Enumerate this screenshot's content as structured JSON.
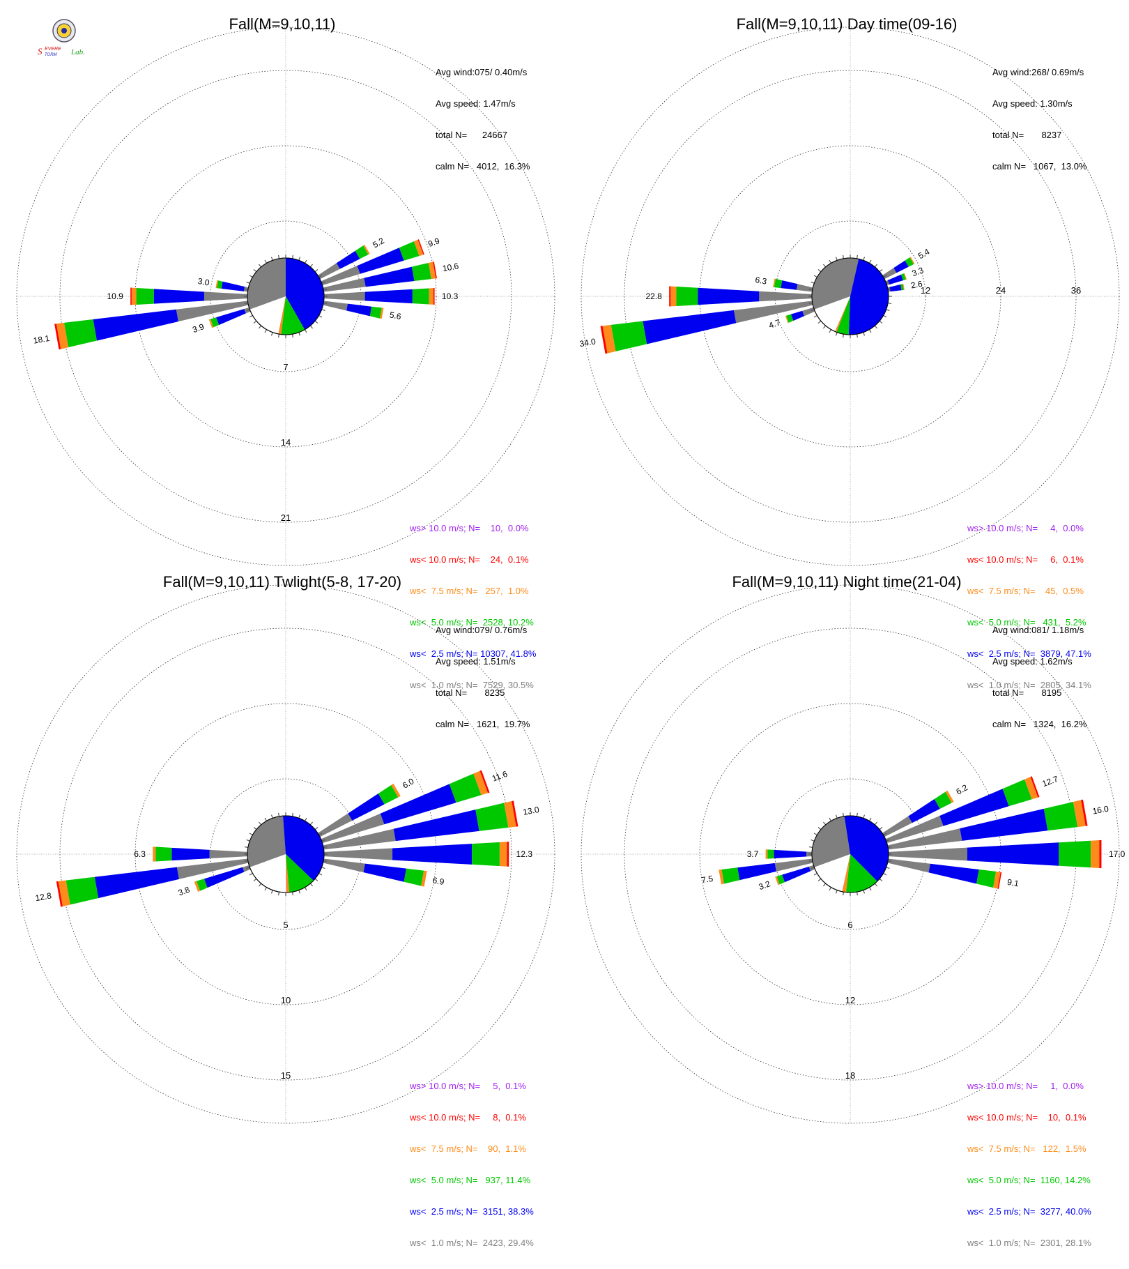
{
  "logo": {
    "text_main": "Severe",
    "text_sub": "Storm",
    "text_lab": "Lab."
  },
  "colors": {
    "calm": "#7f7f7f",
    "ws_lt_1": "#7f7f7f",
    "ws_lt_2_5": "#0000f0",
    "ws_lt_5": "#00c800",
    "ws_lt_7_5": "#ff8c1a",
    "ws_lt_10": "#ff0000",
    "ws_gt_10": "#a020f0"
  },
  "chart_data": [
    {
      "type": "windrose",
      "title": "Fall(M=9,10,11)",
      "stats": [
        "Avg wind:075/ 0.40m/s",
        "Avg speed: 1.47m/s",
        "total N=      24667",
        "calm N=   4012,  16.3%"
      ],
      "ring_labels": [
        "7",
        "14",
        "21"
      ],
      "ring_label_side": "bottom",
      "ring_step": 7,
      "legend": [
        {
          "text": "ws> 10.0 m/s; N=    10,  0.0%",
          "color": "#a020f0"
        },
        {
          "text": "ws< 10.0 m/s; N=    24,  0.1%",
          "color": "#ff0000"
        },
        {
          "text": "ws<  7.5 m/s; N=   257,  1.0%",
          "color": "#ff8c1a"
        },
        {
          "text": "ws<  5.0 m/s; N=  2528, 10.2%",
          "color": "#00c800"
        },
        {
          "text": "ws<  2.5 m/s; N= 10307, 41.8%",
          "color": "#0000f0"
        },
        {
          "text": "ws<  1.0 m/s; N=  7529, 30.5%",
          "color": "#7f7f7f"
        }
      ],
      "pie": [
        30.5,
        41.8,
        10.2,
        1.0,
        0.1,
        0.0
      ],
      "directions": [
        {
          "deg": 60,
          "total": 5.2,
          "label": "5.2"
        },
        {
          "deg": 70,
          "total": 9.9,
          "label": "9.9"
        },
        {
          "deg": 80,
          "total": 10.6,
          "label": "10.6"
        },
        {
          "deg": 90,
          "total": 10.3,
          "label": "10.3"
        },
        {
          "deg": 100,
          "total": 5.6,
          "label": "5.6"
        },
        {
          "deg": 250,
          "total": 3.9,
          "label": "3.9"
        },
        {
          "deg": 260,
          "total": 18.1,
          "label": "18.1"
        },
        {
          "deg": 270,
          "total": 10.9,
          "label": "10.9"
        },
        {
          "deg": 280,
          "total": 3.0,
          "label": "3.0"
        }
      ]
    },
    {
      "type": "windrose",
      "title": "Fall(M=9,10,11) Day time(09-16)",
      "stats": [
        "Avg wind:268/ 0.69m/s",
        "Avg speed: 1.30m/s",
        "total N=       8237",
        "calm N=   1067,  13.0%"
      ],
      "ring_labels": [
        "12",
        "24",
        "36"
      ],
      "ring_label_side": "right",
      "ring_step": 12,
      "legend": [
        {
          "text": "ws> 10.0 m/s; N=     4,  0.0%",
          "color": "#a020f0"
        },
        {
          "text": "ws< 10.0 m/s; N=     6,  0.1%",
          "color": "#ff0000"
        },
        {
          "text": "ws<  7.5 m/s; N=    45,  0.5%",
          "color": "#ff8c1a"
        },
        {
          "text": "ws<  5.0 m/s; N=   431,  5.2%",
          "color": "#00c800"
        },
        {
          "text": "ws<  2.5 m/s; N=  3879, 47.1%",
          "color": "#0000f0"
        },
        {
          "text": "ws<  1.0 m/s; N=  2805, 34.1%",
          "color": "#7f7f7f"
        }
      ],
      "pie": [
        34.1,
        47.1,
        5.2,
        0.5,
        0.1,
        0.0
      ],
      "directions": [
        {
          "deg": 60,
          "total": 5.4,
          "label": "5.4"
        },
        {
          "deg": 70,
          "total": 3.3,
          "label": "3.3"
        },
        {
          "deg": 80,
          "total": 2.6,
          "label": "2.6"
        },
        {
          "deg": 250,
          "total": 4.7,
          "label": "4.7"
        },
        {
          "deg": 260,
          "total": 34.0,
          "label": "34.0"
        },
        {
          "deg": 270,
          "total": 22.8,
          "label": "22.8"
        },
        {
          "deg": 280,
          "total": 6.3,
          "label": "6.3"
        }
      ]
    },
    {
      "type": "windrose",
      "title": "Fall(M=9,10,11) Twlight(5-8, 17-20)",
      "stats": [
        "Avg wind:079/ 0.76m/s",
        "Avg speed: 1.51m/s",
        "total N=       8235",
        "calm N=   1621,  19.7%"
      ],
      "ring_labels": [
        "5",
        "10",
        "15"
      ],
      "ring_label_side": "bottom",
      "ring_step": 5,
      "legend": [
        {
          "text": "ws> 10.0 m/s; N=     5,  0.1%",
          "color": "#a020f0"
        },
        {
          "text": "ws< 10.0 m/s; N=     8,  0.1%",
          "color": "#ff0000"
        },
        {
          "text": "ws<  7.5 m/s; N=    90,  1.1%",
          "color": "#ff8c1a"
        },
        {
          "text": "ws<  5.0 m/s; N=   937, 11.4%",
          "color": "#00c800"
        },
        {
          "text": "ws<  2.5 m/s; N=  3151, 38.3%",
          "color": "#0000f0"
        },
        {
          "text": "ws<  1.0 m/s; N=  2423, 29.4%",
          "color": "#7f7f7f"
        }
      ],
      "pie": [
        29.4,
        38.3,
        11.4,
        1.1,
        0.1,
        0.1
      ],
      "directions": [
        {
          "deg": 60,
          "total": 6.0,
          "label": "6.0"
        },
        {
          "deg": 70,
          "total": 11.6,
          "label": "11.6"
        },
        {
          "deg": 80,
          "total": 13.0,
          "label": "13.0"
        },
        {
          "deg": 90,
          "total": 12.3,
          "label": "12.3"
        },
        {
          "deg": 100,
          "total": 6.9,
          "label": "6.9"
        },
        {
          "deg": 250,
          "total": 3.8,
          "label": "3.8"
        },
        {
          "deg": 260,
          "total": 12.8,
          "label": "12.8"
        },
        {
          "deg": 270,
          "total": 6.3,
          "label": "6.3"
        }
      ]
    },
    {
      "type": "windrose",
      "title": "Fall(M=9,10,11) Night time(21-04)",
      "stats": [
        "Avg wind:081/ 1.18m/s",
        "Avg speed: 1.62m/s",
        "total N=       8195",
        "calm N=   1324,  16.2%"
      ],
      "ring_labels": [
        "6",
        "12",
        "18"
      ],
      "ring_label_side": "bottom",
      "ring_step": 6,
      "legend": [
        {
          "text": "ws> 10.0 m/s; N=     1,  0.0%",
          "color": "#a020f0"
        },
        {
          "text": "ws< 10.0 m/s; N=    10,  0.1%",
          "color": "#ff0000"
        },
        {
          "text": "ws<  7.5 m/s; N=   122,  1.5%",
          "color": "#ff8c1a"
        },
        {
          "text": "ws<  5.0 m/s; N=  1160, 14.2%",
          "color": "#00c800"
        },
        {
          "text": "ws<  2.5 m/s; N=  3277, 40.0%",
          "color": "#0000f0"
        },
        {
          "text": "ws<  1.0 m/s; N=  2301, 28.1%",
          "color": "#7f7f7f"
        }
      ],
      "pie": [
        28.1,
        40.0,
        14.2,
        1.5,
        0.1,
        0.0
      ],
      "directions": [
        {
          "deg": 60,
          "total": 6.2,
          "label": "6.2"
        },
        {
          "deg": 70,
          "total": 12.7,
          "label": "12.7"
        },
        {
          "deg": 80,
          "total": 16.0,
          "label": "16.0"
        },
        {
          "deg": 90,
          "total": 17.0,
          "label": "17.0"
        },
        {
          "deg": 100,
          "total": 9.1,
          "label": "9.1"
        },
        {
          "deg": 250,
          "total": 3.2,
          "label": "3.2"
        },
        {
          "deg": 260,
          "total": 7.5,
          "label": "7.5"
        },
        {
          "deg": 270,
          "total": 3.7,
          "label": "3.7"
        }
      ]
    }
  ]
}
